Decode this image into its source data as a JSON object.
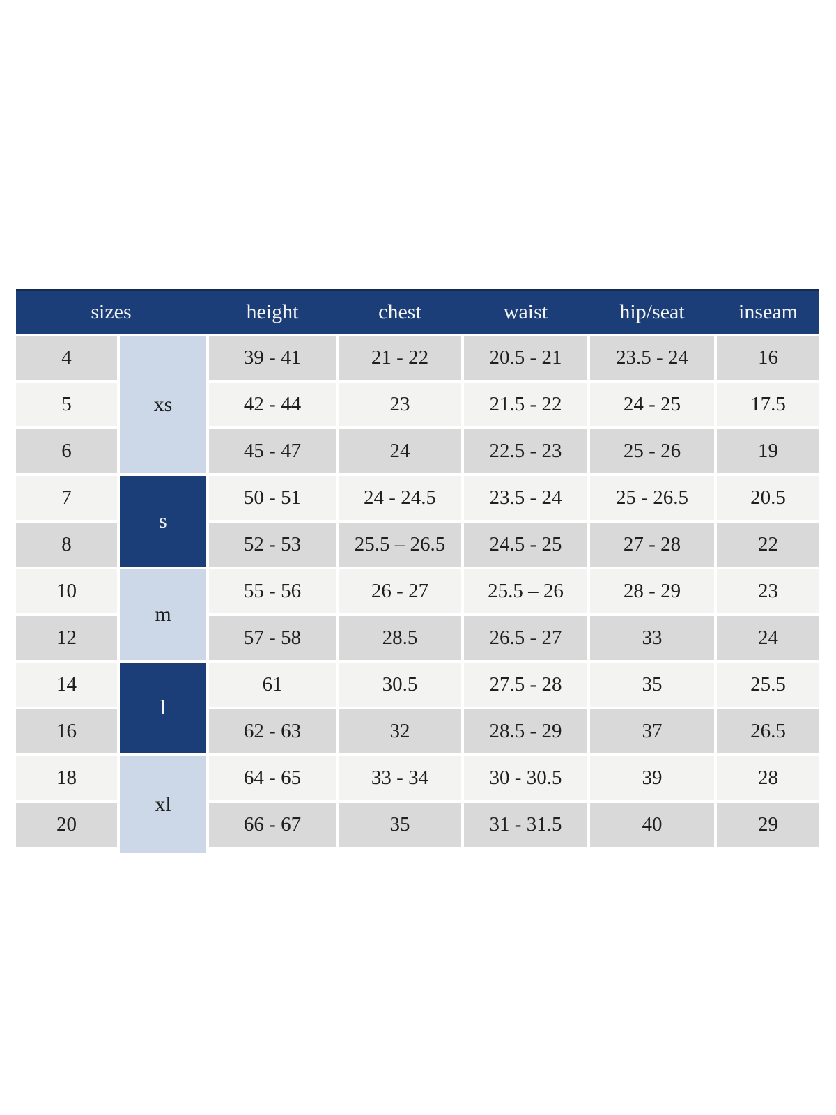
{
  "chart_data": {
    "type": "table",
    "headers": [
      "sizes",
      "height",
      "chest",
      "waist",
      "hip/seat",
      "inseam"
    ],
    "size_groups": [
      {
        "label": "xs",
        "sizes": [
          "4",
          "5",
          "6"
        ],
        "shade": "light-blue"
      },
      {
        "label": "s",
        "sizes": [
          "7",
          "8"
        ],
        "shade": "navy"
      },
      {
        "label": "m",
        "sizes": [
          "10",
          "12"
        ],
        "shade": "light-blue"
      },
      {
        "label": "l",
        "sizes": [
          "14",
          "16"
        ],
        "shade": "navy"
      },
      {
        "label": "xl",
        "sizes": [
          "18",
          "20"
        ],
        "shade": "light-blue"
      }
    ],
    "rows": [
      {
        "size": "4",
        "height": "39 - 41",
        "chest": "21 - 22",
        "waist": "20.5 - 21",
        "hip_seat": "23.5 - 24",
        "inseam": "16"
      },
      {
        "size": "5",
        "height": "42 - 44",
        "chest": "23",
        "waist": "21.5 - 22",
        "hip_seat": "24 - 25",
        "inseam": "17.5"
      },
      {
        "size": "6",
        "height": "45 - 47",
        "chest": "24",
        "waist": "22.5 - 23",
        "hip_seat": "25 - 26",
        "inseam": "19"
      },
      {
        "size": "7",
        "height": "50 - 51",
        "chest": "24 - 24.5",
        "waist": "23.5 - 24",
        "hip_seat": "25 - 26.5",
        "inseam": "20.5"
      },
      {
        "size": "8",
        "height": "52 - 53",
        "chest": "25.5 – 26.5",
        "waist": "24.5 - 25",
        "hip_seat": "27 - 28",
        "inseam": "22"
      },
      {
        "size": "10",
        "height": "55 - 56",
        "chest": "26 - 27",
        "waist": "25.5 – 26",
        "hip_seat": "28 - 29",
        "inseam": "23"
      },
      {
        "size": "12",
        "height": "57 - 58",
        "chest": "28.5",
        "waist": "26.5 - 27",
        "hip_seat": "33",
        "inseam": "24"
      },
      {
        "size": "14",
        "height": "61",
        "chest": "30.5",
        "waist": "27.5 - 28",
        "hip_seat": "35",
        "inseam": "25.5"
      },
      {
        "size": "16",
        "height": "62 - 63",
        "chest": "32",
        "waist": "28.5 - 29",
        "hip_seat": "37",
        "inseam": "26.5"
      },
      {
        "size": "18",
        "height": "64 - 65",
        "chest": "33 - 34",
        "waist": "30 - 30.5",
        "hip_seat": "39",
        "inseam": "28"
      },
      {
        "size": "20",
        "height": "66 - 67",
        "chest": "35",
        "waist": "31 - 31.5",
        "hip_seat": "40",
        "inseam": "29"
      }
    ]
  },
  "colors": {
    "navy": "#1b3d78",
    "navy_top_border": "#152a4e",
    "light_blue": "#ccd8e7",
    "row_gray": "#d9d9d9",
    "row_light": "#f3f3f2",
    "header_text": "#f4f4f2",
    "data_text": "#1f1f1f",
    "grid_gap": "#ffffff"
  }
}
